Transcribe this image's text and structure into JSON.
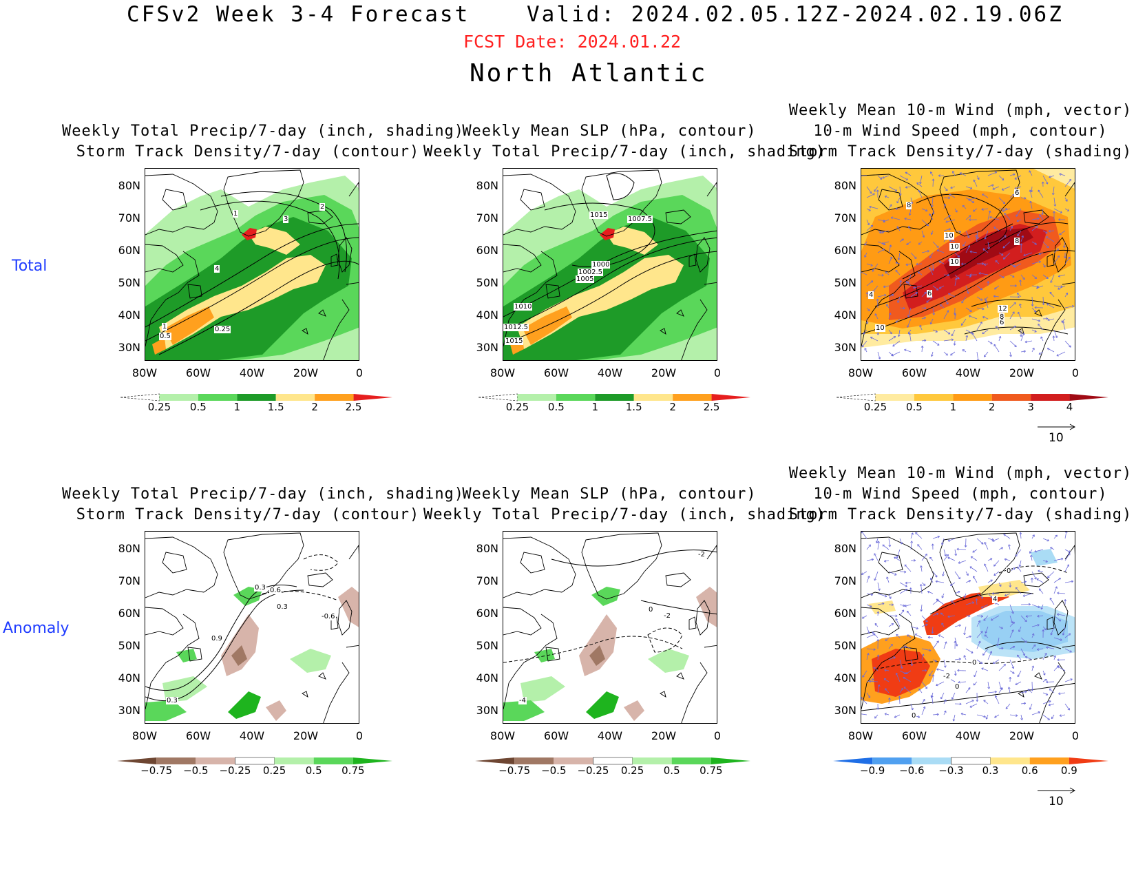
{
  "header": {
    "title": "CFSv2 Week 3-4 Forecast",
    "valid": "Valid: 2024.02.05.12Z-2024.02.19.06Z",
    "fcst_date": "FCST Date: 2024.01.22",
    "region": "North Atlantic"
  },
  "rows": {
    "total_label": "Total",
    "anomaly_label": "Anomaly"
  },
  "panel_titles": {
    "precip_storm": [
      "Weekly Total Precip/7-day (inch, shading)",
      "Storm Track Density/7-day (contour)"
    ],
    "slp_precip": [
      "Weekly Mean SLP (hPa, contour)",
      "Weekly Total Precip/7-day (inch, shading)"
    ],
    "wind_storm": [
      "Weekly Mean 10-m Wind (mph, vector)",
      "10-m Wind Speed (mph, contour)",
      "Storm Track Density/7-day (shading)"
    ]
  },
  "axes": {
    "lat_ticks": [
      "80N",
      "70N",
      "60N",
      "50N",
      "40N",
      "30N"
    ],
    "lon_ticks": [
      "80W",
      "60W",
      "40W",
      "20W",
      "0"
    ]
  },
  "colorbars": {
    "precip_total": {
      "labels": [
        "0.25",
        "0.5",
        "1",
        "1.5",
        "2",
        "2.5"
      ],
      "colors": [
        "#ffffff",
        "#b4f0aa",
        "#5ad75a",
        "#1e9b28",
        "#ffe68c",
        "#ffa01e",
        "#e61e1e"
      ]
    },
    "storm_total": {
      "labels": [
        "0.25",
        "0.5",
        "1",
        "2",
        "3",
        "4"
      ],
      "colors": [
        "#ffffff",
        "#ffeba0",
        "#ffc83c",
        "#ff9b14",
        "#f05a1e",
        "#d21e1e",
        "#a00a14"
      ]
    },
    "precip_anom": {
      "labels": [
        "−0.75",
        "−0.5",
        "−0.25",
        "0.25",
        "0.5",
        "0.75"
      ],
      "colors": [
        "#6e4632",
        "#a07864",
        "#d7b4aa",
        "#ffffff",
        "#b4f0aa",
        "#5ad75a",
        "#1eb41e"
      ]
    },
    "storm_anom": {
      "labels": [
        "−0.9",
        "−0.6",
        "−0.3",
        "0.3",
        "0.6",
        "0.9"
      ],
      "colors": [
        "#1e6ee6",
        "#50a0f0",
        "#aadcf5",
        "#ffffff",
        "#ffe68c",
        "#ffa01e",
        "#f03c14"
      ]
    }
  },
  "vector_reference": "10",
  "contour_labels": {
    "p1_total": [
      "1",
      "3",
      "2",
      "4",
      "1",
      "0.5",
      "0.25"
    ],
    "p2_total": [
      "1015",
      "1007.5",
      "1000",
      "1002.5",
      "1005",
      "1010",
      "1012.5",
      "1015"
    ],
    "p3_total": [
      "6",
      "8",
      "10",
      "10",
      "10",
      "8",
      "4",
      "6",
      "12",
      "8",
      "6",
      "10"
    ],
    "p1_anom": [
      "0.3",
      "0.6",
      "0.3",
      "-0.6",
      "0.9",
      "0.3"
    ],
    "p2_anom": [
      "-2",
      "0",
      "-2",
      "-4"
    ],
    "p3_anom": [
      "0",
      "4",
      "0",
      "-2",
      "0",
      "0"
    ]
  }
}
